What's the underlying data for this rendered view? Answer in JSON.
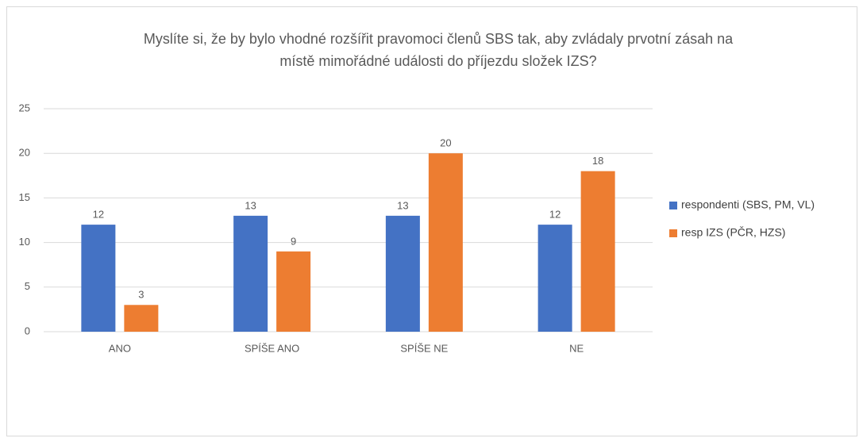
{
  "chart_data": {
    "type": "bar",
    "title": [
      "Myslíte si, že by bylo vhodné rozšířit pravomoci členů SBS tak, aby zvládaly prvotní zásah na",
      "místě mimořádné události do příjezdu složek IZS?"
    ],
    "categories": [
      "ANO",
      "SPÍŠE ANO",
      "SPÍŠE NE",
      "NE"
    ],
    "series": [
      {
        "name": "respondenti (SBS, PM, VL)",
        "color": "#4472c4",
        "values": [
          12,
          13,
          13,
          12
        ]
      },
      {
        "name": "resp IZS (PČR, HZS)",
        "color": "#ed7d31",
        "values": [
          3,
          9,
          20,
          18
        ]
      }
    ],
    "ylim": [
      0,
      25
    ],
    "yticks": [
      0,
      5,
      10,
      15,
      20,
      25
    ],
    "grid": true,
    "legend": "right"
  }
}
